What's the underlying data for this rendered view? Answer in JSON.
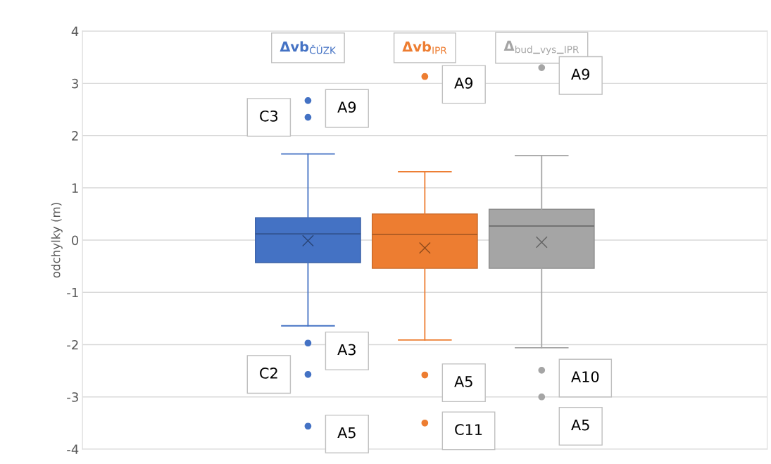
{
  "chart_data": {
    "type": "box",
    "ylabel": "odchylky (m)",
    "categories": [
      null
    ],
    "series": [
      {
        "name": "Δvb$_{ČÚZK}$",
        "color": "#4472c4",
        "boxes": [
          {
            "low": -1.64,
            "q1": -0.43,
            "median": 0.12,
            "q3": 0.43,
            "high": 1.65,
            "mean": -0.01,
            "outliers": [
              2.67,
              2.35,
              -1.97,
              -2.57,
              -3.56
            ]
          }
        ]
      },
      {
        "name": "Δvb$_{IPR}$",
        "color": "#ed7d31",
        "boxes": [
          {
            "low": -1.91,
            "q1": -0.54,
            "median": 0.11,
            "q3": 0.5,
            "high": 1.31,
            "mean": -0.15,
            "outliers": [
              3.13,
              -2.58,
              -3.5
            ]
          }
        ]
      },
      {
        "name": "Δ$_{bud}$_$_{vys}$_$_{IPR}$",
        "color": "#a5a5a5",
        "boxes": [
          {
            "low": -2.06,
            "q1": -0.54,
            "median": 0.27,
            "q3": 0.59,
            "high": 1.62,
            "mean": -0.04,
            "outliers": [
              3.3,
              -2.49,
              -3.0
            ]
          }
        ]
      }
    ],
    "annotations": [
      "A9",
      "C3",
      "A3",
      "C2",
      "A5",
      "A9",
      "A5",
      "C11",
      "A9",
      "A10",
      "A5"
    ],
    "ylim": [
      -4,
      4
    ],
    "yticks": [
      -4,
      -3,
      -2,
      -1,
      0,
      1,
      2,
      3,
      4
    ],
    "grid": "y",
    "legend": false
  }
}
